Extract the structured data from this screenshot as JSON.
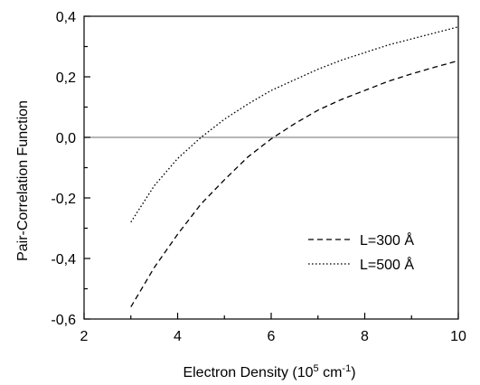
{
  "chart_data": {
    "type": "line",
    "xlabel": {
      "prefix": "Electron Density (10",
      "exp1": "5",
      "mid": " cm",
      "exp2": "-1",
      "suffix": ")"
    },
    "ylabel": "Pair-Correlation Function",
    "xlim": [
      2,
      10
    ],
    "ylim": [
      -0.6,
      0.4
    ],
    "xticks": [
      2,
      4,
      6,
      8,
      10
    ],
    "xtick_labels": [
      "2",
      "4",
      "6",
      "8",
      "10"
    ],
    "yticks": [
      -0.6,
      -0.4,
      -0.2,
      0.0,
      0.2,
      0.4
    ],
    "ytick_labels": [
      "-0,6",
      "-0,4",
      "-0,2",
      "0,0",
      "0,2",
      "0,4"
    ],
    "reference_line_y": 0.0,
    "legend_position": "lower-right",
    "series": [
      {
        "name": "L=300 Å",
        "dash": "dashed",
        "x": [
          3.0,
          3.5,
          4.0,
          4.5,
          5.0,
          5.5,
          6.0,
          6.5,
          7.0,
          7.5,
          8.0,
          8.5,
          9.0,
          9.5,
          10.0
        ],
        "y": [
          -0.56,
          -0.43,
          -0.32,
          -0.22,
          -0.14,
          -0.065,
          -0.005,
          0.045,
          0.09,
          0.125,
          0.155,
          0.185,
          0.21,
          0.232,
          0.253
        ]
      },
      {
        "name": "L=500 Å",
        "dash": "dotted",
        "x": [
          3.0,
          3.5,
          4.0,
          4.5,
          5.0,
          5.5,
          6.0,
          6.5,
          7.0,
          7.5,
          8.0,
          8.5,
          9.0,
          9.5,
          10.0
        ],
        "y": [
          -0.28,
          -0.16,
          -0.07,
          0.0,
          0.06,
          0.11,
          0.155,
          0.19,
          0.225,
          0.255,
          0.28,
          0.305,
          0.325,
          0.345,
          0.365
        ]
      }
    ]
  }
}
